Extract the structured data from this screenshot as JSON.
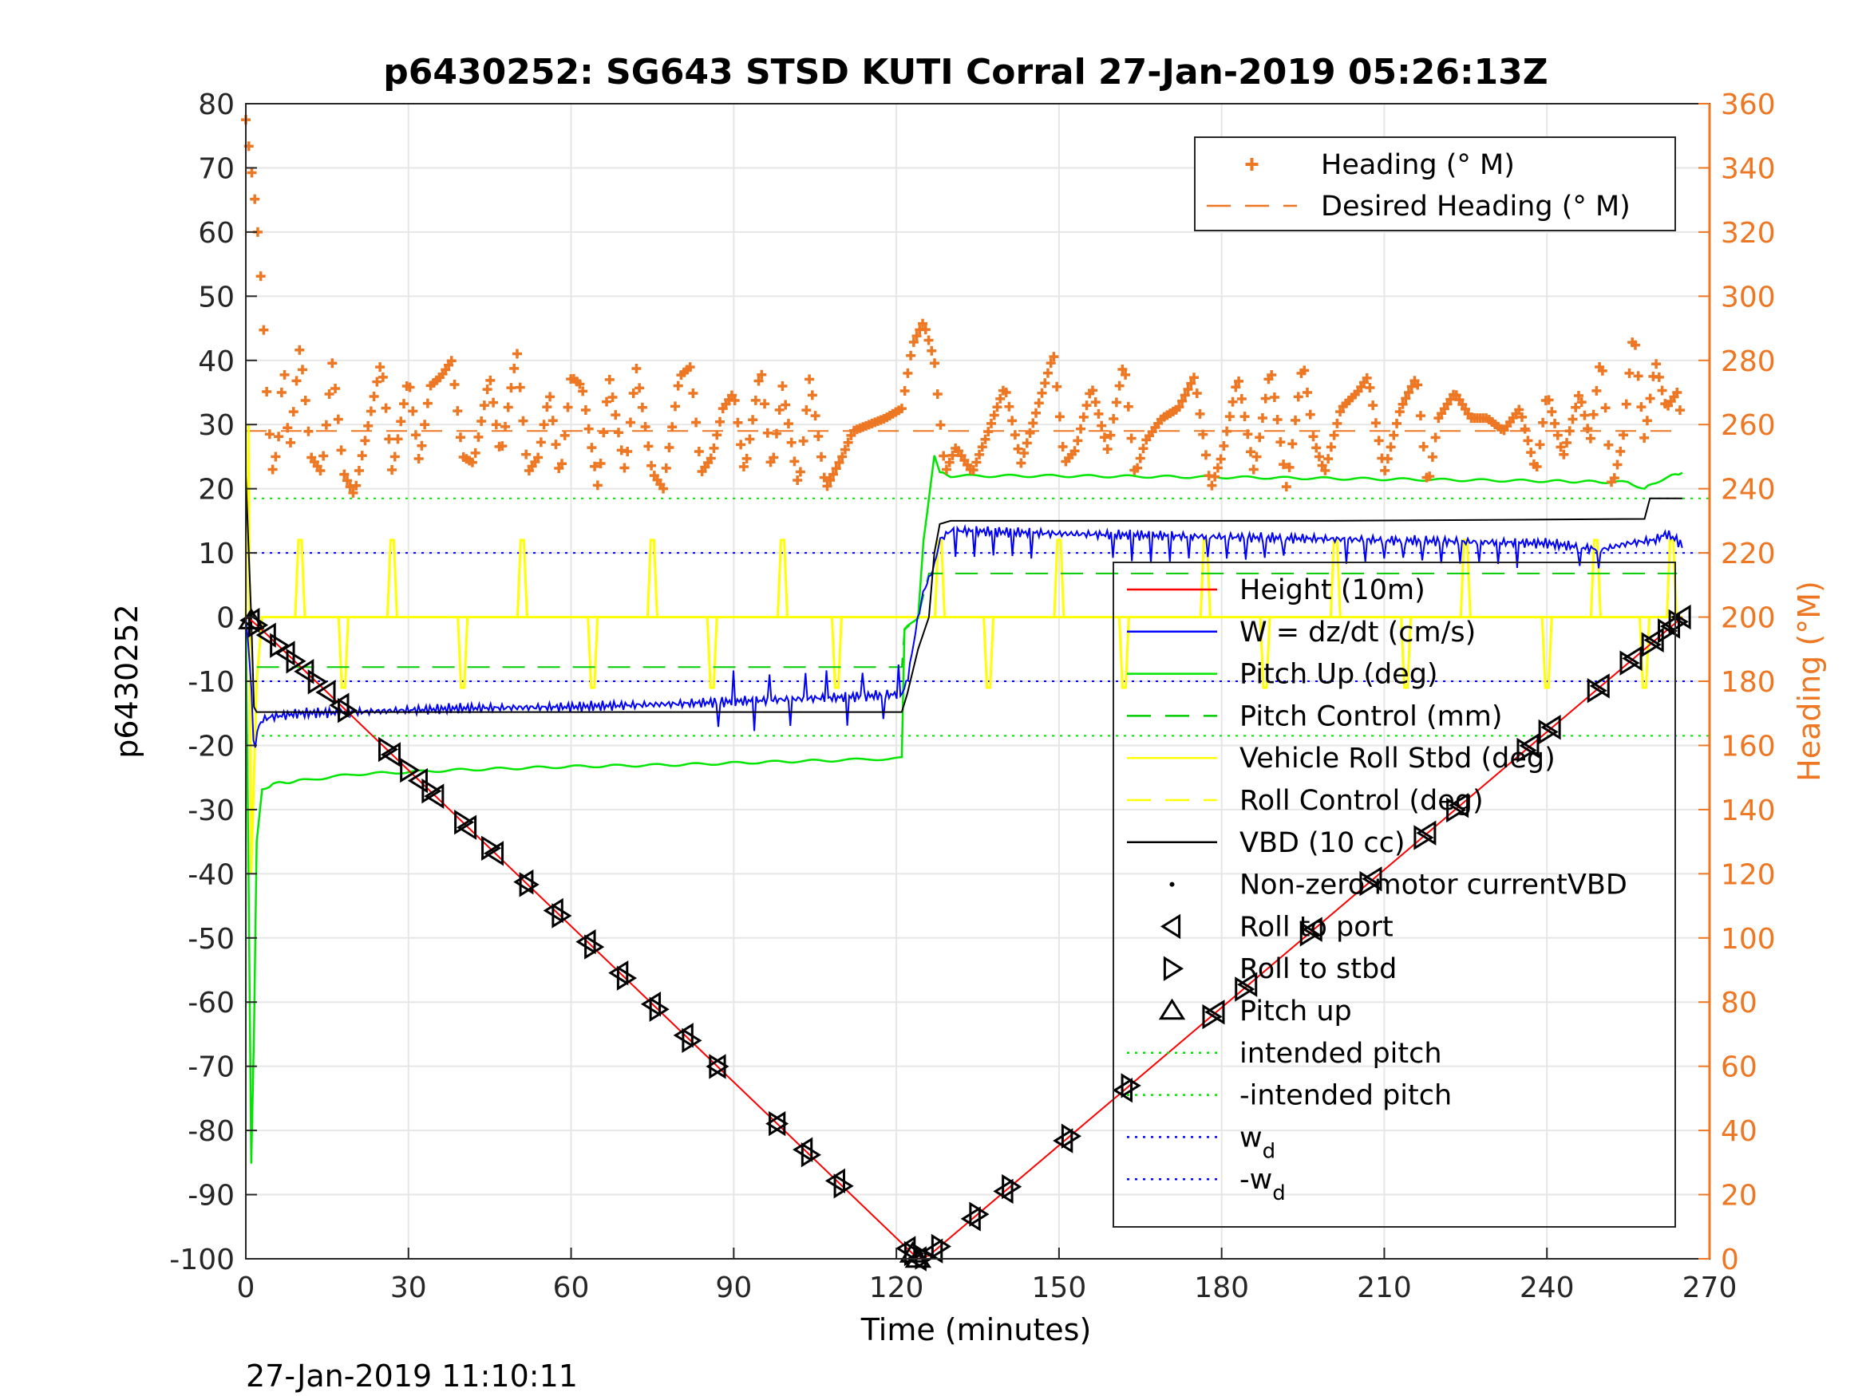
{
  "figure": {
    "title": "p6430252: SG643 STSD KUTI Corral 27-Jan-2019 05:26:13Z",
    "footer": "27-Jan-2019 11:10:11"
  },
  "colors": {
    "height": "#ff0000",
    "w": "#0000ff",
    "pitch": "#00e600",
    "pitch_control": "#00cc00",
    "roll": "#ffff00",
    "vbd": "#000000",
    "heading": "#ED7722",
    "markers": "#000000"
  },
  "chart_data": {
    "type": "line",
    "title": "p6430252: SG643 STSD KUTI Corral 27-Jan-2019 05:26:13Z",
    "xlabel": "Time (minutes)",
    "ylabel": "p6430252",
    "y2label": "Heading (°M)",
    "xlim": [
      0,
      270
    ],
    "ylim": [
      -100,
      80
    ],
    "y2lim": [
      0,
      360
    ],
    "xticks": [
      "0",
      "30",
      "60",
      "90",
      "120",
      "150",
      "180",
      "210",
      "240",
      "270"
    ],
    "yticks": [
      "80",
      "70",
      "60",
      "50",
      "40",
      "30",
      "20",
      "10",
      "0",
      "-10",
      "-20",
      "-30",
      "-40",
      "-50",
      "-60",
      "-70",
      "-80",
      "-90",
      "-100"
    ],
    "y2ticks": [
      "360",
      "340",
      "320",
      "300",
      "280",
      "260",
      "240",
      "220",
      "200",
      "180",
      "160",
      "140",
      "120",
      "100",
      "80",
      "60",
      "40",
      "20",
      "0"
    ],
    "grid": true,
    "legend_top": {
      "placement": "top-right",
      "entries": [
        {
          "label": "Heading (° M)",
          "style": "plus",
          "color": "#ED7722"
        },
        {
          "label": "Desired Heading (° M)",
          "style": "dashed",
          "color": "#ED7722"
        }
      ]
    },
    "legend_main": {
      "placement": "right",
      "entries": [
        {
          "label": "Height (10m)",
          "style": "solid",
          "color": "#ff0000"
        },
        {
          "label": "W = dz/dt (cm/s)",
          "style": "solid",
          "color": "#0000ff"
        },
        {
          "label": "Pitch Up (deg)",
          "style": "solid",
          "color": "#00e600"
        },
        {
          "label": "Pitch Control (mm)",
          "style": "dashed",
          "color": "#00cc00"
        },
        {
          "label": "Vehicle Roll Stbd (deg)",
          "style": "solid",
          "color": "#ffff00"
        },
        {
          "label": "Roll Control (deg)",
          "style": "dashed",
          "color": "#ffff00"
        },
        {
          "label": "VBD (10 cc)",
          "style": "solid",
          "color": "#000000"
        },
        {
          "label": "Non-zero motor currentVBD",
          "style": "dot",
          "color": "#000000"
        },
        {
          "label": "Roll to port",
          "style": "tri-left",
          "color": "#000000"
        },
        {
          "label": "Roll to stbd",
          "style": "tri-right",
          "color": "#000000"
        },
        {
          "label": "Pitch up",
          "style": "tri-up",
          "color": "#000000"
        },
        {
          "label": "intended pitch",
          "style": "dotted",
          "color": "#00e600"
        },
        {
          "label": "-intended pitch",
          "style": "dotted",
          "color": "#00e600"
        },
        {
          "label": "w",
          "sub": "d",
          "style": "dotted",
          "color": "#0000ff"
        },
        {
          "label": "-w",
          "sub": "d",
          "style": "dotted",
          "color": "#0000ff"
        }
      ]
    },
    "series": [
      {
        "name": "Height (10m)",
        "axis": "left",
        "color": "#ff0000",
        "x": [
          0,
          1,
          3,
          124,
          126,
          265
        ],
        "y": [
          0,
          -0.5,
          -2,
          -100,
          -99.5,
          0
        ]
      },
      {
        "name": "W = dz/dt (cm/s)",
        "axis": "left",
        "color": "#0000ff",
        "x": [
          0,
          1,
          1.5,
          2,
          3,
          5,
          10,
          20,
          40,
          60,
          80,
          100,
          110,
          121,
          122,
          123,
          124,
          125,
          127,
          128,
          130,
          150,
          180,
          210,
          240,
          250,
          255,
          260,
          262,
          264,
          265
        ],
        "y": [
          0,
          -10,
          -22,
          -18,
          -16,
          -15.5,
          -15,
          -14.8,
          -14.2,
          -14,
          -13.5,
          -12.8,
          -12.5,
          -12,
          -10,
          -5,
          0,
          4,
          8,
          12,
          13.5,
          13,
          12.5,
          12,
          11.5,
          10.5,
          11.5,
          12,
          13,
          12,
          11
        ]
      },
      {
        "name": "Pitch Up (deg)",
        "axis": "left",
        "color": "#00e600",
        "x": [
          0,
          0.5,
          1,
          1.5,
          2,
          3,
          5,
          10,
          20,
          40,
          60,
          80,
          100,
          110,
          121,
          121.5,
          124,
          125,
          127,
          128,
          130,
          150,
          180,
          210,
          240,
          255,
          258,
          260,
          263,
          265
        ],
        "y": [
          0,
          -40,
          -85,
          -65,
          -35,
          -27,
          -26,
          -25.5,
          -24.5,
          -23.8,
          -23.3,
          -23,
          -22.5,
          -22.3,
          -22,
          -2,
          0,
          12,
          25,
          22.5,
          22,
          22,
          21.8,
          21.5,
          21.2,
          21,
          20,
          21,
          22,
          22.5
        ]
      },
      {
        "name": "Pitch Control (mm)",
        "axis": "left",
        "color": "#00cc00",
        "style": "dashed",
        "x": [
          2,
          121,
          121.5,
          124,
          126,
          264
        ],
        "y": [
          -7.8,
          -7.8,
          -2,
          0,
          6.8,
          6.8
        ]
      },
      {
        "name": "Vehicle Roll Stbd (deg)",
        "axis": "left",
        "color": "#ffff00",
        "x": [
          0,
          0.5,
          1,
          2,
          3,
          6,
          10,
          18,
          30,
          60,
          90,
          120,
          124,
          150,
          180,
          210,
          240,
          260,
          265
        ],
        "y": [
          0,
          30,
          -40,
          -10,
          0,
          0,
          0,
          0,
          0,
          0,
          0,
          0,
          0,
          0,
          0,
          0,
          0,
          0,
          0
        ],
        "spikes_x": [
          10,
          18,
          27,
          40,
          51,
          64,
          75,
          86,
          99,
          109,
          128,
          137,
          150,
          162,
          177,
          188,
          201,
          214,
          225,
          240,
          249,
          258,
          263
        ]
      },
      {
        "name": "VBD (10 cc)",
        "axis": "left",
        "color": "#000000",
        "x": [
          0,
          1,
          1.5,
          2,
          3,
          10,
          121,
          122,
          124,
          126,
          127,
          128,
          130,
          200,
          258,
          259,
          265
        ],
        "y": [
          22,
          0,
          -14,
          -14.8,
          -14.8,
          -14.8,
          -14.8,
          -12,
          -5,
          0,
          10,
          14.5,
          15,
          15,
          15.3,
          18.5,
          18.5
        ]
      },
      {
        "name": "Heading (° M)",
        "axis": "right",
        "color": "#ED7722",
        "marker": "+",
        "x": [
          0,
          1,
          2,
          3,
          4,
          5,
          6,
          7,
          8,
          10,
          12,
          14,
          16,
          18,
          20,
          22,
          25,
          27,
          30,
          32,
          34,
          36,
          38,
          40,
          42,
          45,
          47,
          50,
          52,
          54,
          56,
          58,
          60,
          62,
          65,
          67,
          70,
          72,
          75,
          77,
          80,
          82,
          84,
          86,
          88,
          90,
          92,
          95,
          97,
          99,
          102,
          104,
          107,
          110,
          112,
          115,
          118,
          121,
          123,
          125,
          127,
          129,
          131,
          134,
          137,
          140,
          143,
          146,
          149,
          151,
          153,
          156,
          159,
          162,
          164,
          166,
          169,
          172,
          175,
          178,
          180,
          183,
          186,
          189,
          192,
          195,
          197,
          199,
          202,
          205,
          207,
          210,
          213,
          216,
          218,
          220,
          223,
          226,
          229,
          232,
          235,
          238,
          240,
          243,
          246,
          248,
          250,
          252,
          254,
          256,
          258,
          260,
          262,
          264,
          265
        ],
        "y": [
          355,
          340,
          325,
          300,
          265,
          245,
          255,
          280,
          250,
          285,
          250,
          245,
          280,
          245,
          238,
          255,
          280,
          245,
          275,
          248,
          272,
          275,
          280,
          250,
          248,
          275,
          250,
          283,
          245,
          250,
          270,
          243,
          275,
          272,
          240,
          275,
          245,
          278,
          245,
          240,
          275,
          278,
          245,
          250,
          265,
          270,
          245,
          278,
          245,
          272,
          240,
          275,
          240,
          250,
          258,
          260,
          262,
          265,
          285,
          292,
          280,
          245,
          253,
          245,
          258,
          272,
          248,
          265,
          282,
          248,
          252,
          272,
          252,
          280,
          244,
          255,
          262,
          265,
          275,
          240,
          250,
          275,
          245,
          278,
          240,
          280,
          255,
          245,
          265,
          270,
          275,
          245,
          265,
          275,
          240,
          262,
          270,
          262,
          262,
          258,
          265,
          245,
          270,
          250,
          270,
          255,
          282,
          240,
          255,
          290,
          255,
          280,
          265,
          270,
          260
        ]
      },
      {
        "name": "Desired Heading (° M)",
        "axis": "right",
        "color": "#ED7722",
        "style": "dashed",
        "x": [
          0,
          265
        ],
        "y": [
          258,
          258
        ]
      }
    ],
    "reference_lines": [
      {
        "name": "intended pitch",
        "value": 18.5,
        "color": "#00e600",
        "style": "dotted"
      },
      {
        "name": "-intended pitch",
        "value": -18.5,
        "color": "#00e600",
        "style": "dotted"
      },
      {
        "name": "w_d",
        "value": 10,
        "color": "#0000ff",
        "style": "dotted"
      },
      {
        "name": "-w_d",
        "value": -10,
        "color": "#0000ff",
        "style": "dotted"
      }
    ],
    "markers": {
      "roll_to_port": [
        1,
        4,
        7.5,
        11,
        15,
        17.5,
        27,
        32,
        35,
        41,
        46,
        51.5,
        57,
        63,
        69,
        75,
        81,
        87,
        98,
        103,
        109,
        122,
        124,
        127,
        134,
        140,
        151,
        162,
        179,
        185,
        197,
        208,
        218,
        224,
        237,
        241,
        250,
        256,
        260,
        263,
        265
      ],
      "roll_to_stbd": [
        2,
        6,
        9,
        13,
        18.5,
        26,
        30,
        34,
        40,
        45,
        52,
        58,
        64,
        70,
        76,
        82,
        87,
        98,
        104,
        110,
        123,
        125,
        128,
        135,
        141,
        152,
        163,
        178,
        184,
        196,
        207,
        217,
        223,
        236,
        240,
        249,
        255,
        259,
        262,
        264
      ],
      "pitch_up": [
        1,
        123,
        124
      ]
    }
  }
}
